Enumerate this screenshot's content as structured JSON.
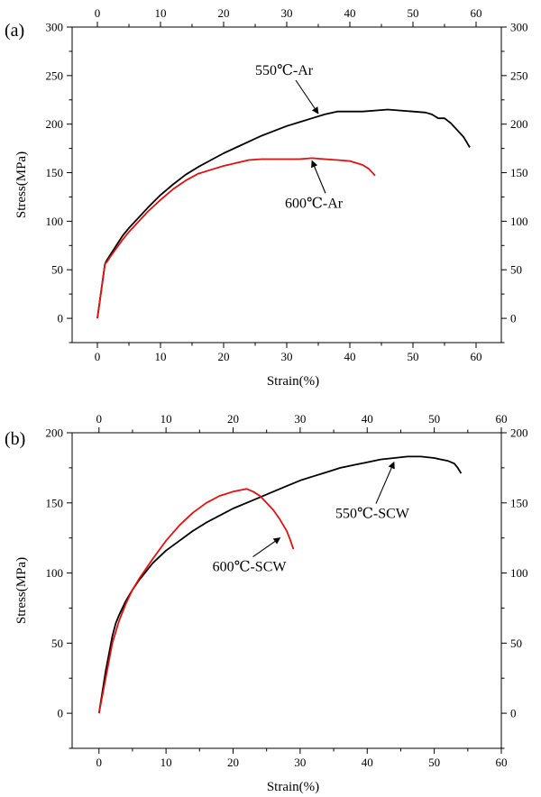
{
  "chart_data": [
    {
      "type": "line",
      "panel_label": "(a)",
      "xlabel": "Strain(%)",
      "ylabel": "Stress(MPa)",
      "xlim": [
        -4,
        64
      ],
      "ylim": [
        -25,
        300
      ],
      "xticks": [
        0,
        10,
        20,
        30,
        40,
        50,
        60
      ],
      "yticks": [
        0,
        50,
        100,
        150,
        200,
        250,
        300
      ],
      "series": [
        {
          "name": "550℃-Ar",
          "color": "#000000",
          "x": [
            0,
            1.2,
            1.5,
            2,
            3,
            4,
            5,
            6,
            8,
            10,
            12,
            14,
            16,
            18,
            20,
            22,
            24,
            26,
            28,
            30,
            32,
            34,
            36,
            38,
            40,
            42,
            44,
            46,
            48,
            50,
            52,
            53,
            54,
            55,
            56,
            57,
            58,
            59
          ],
          "y": [
            0,
            56,
            60,
            65,
            75,
            85,
            93,
            100,
            114,
            127,
            138,
            148,
            156,
            163,
            170,
            176,
            182,
            188,
            193,
            198,
            202,
            206,
            210,
            213,
            213,
            213,
            214,
            215,
            214,
            213,
            212,
            210,
            206,
            206,
            201,
            194,
            187,
            176
          ]
        },
        {
          "name": "600℃-Ar",
          "color": "#e01010",
          "x": [
            0,
            1.2,
            1.5,
            2,
            3,
            4,
            5,
            6,
            8,
            10,
            12,
            14,
            16,
            18,
            20,
            22,
            24,
            26,
            28,
            30,
            32,
            34,
            36,
            38,
            40,
            42,
            43,
            44
          ],
          "y": [
            0,
            56,
            58,
            63,
            72,
            81,
            89,
            96,
            110,
            122,
            133,
            142,
            149,
            153,
            157,
            160,
            163,
            164,
            164,
            164,
            164,
            165,
            164,
            163,
            162,
            158,
            154,
            147
          ]
        }
      ],
      "annotations": [
        {
          "text": "550℃-Ar",
          "series": "550℃-Ar",
          "arrow_to": [
            35,
            209
          ]
        },
        {
          "text": "600℃-Ar",
          "series": "600℃-Ar",
          "arrow_to": [
            34,
            165
          ]
        }
      ]
    },
    {
      "type": "line",
      "panel_label": "(b)",
      "xlabel": "Strain(%)",
      "ylabel": "Stress(MPa)",
      "xlim": [
        -4,
        60
      ],
      "ylim": [
        -25,
        200
      ],
      "xticks": [
        0,
        10,
        20,
        30,
        40,
        50,
        60
      ],
      "yticks": [
        0,
        50,
        100,
        150,
        200
      ],
      "series": [
        {
          "name": "550℃-SCW",
          "color": "#000000",
          "x": [
            0,
            1,
            2,
            2.5,
            3,
            4,
            5,
            6,
            8,
            10,
            12,
            14,
            16,
            18,
            20,
            22,
            24,
            26,
            28,
            30,
            32,
            34,
            36,
            38,
            40,
            42,
            44,
            46,
            48,
            50,
            51,
            52,
            53,
            53.5,
            54
          ],
          "y": [
            0,
            30,
            55,
            64,
            70,
            80,
            88,
            95,
            107,
            116,
            123,
            130,
            136,
            141,
            146,
            150,
            154,
            158,
            162,
            166,
            169,
            172,
            175,
            177,
            179,
            181,
            182,
            183,
            183,
            182,
            181,
            180,
            178,
            175,
            171
          ]
        },
        {
          "name": "600℃-SCW",
          "color": "#e01010",
          "x": [
            0,
            1,
            2,
            3,
            4,
            5,
            6,
            8,
            10,
            12,
            14,
            16,
            18,
            20,
            21,
            22,
            23,
            24,
            25,
            26,
            27,
            28,
            28.5,
            29
          ],
          "y": [
            0,
            25,
            50,
            66,
            78,
            88,
            96,
            110,
            123,
            134,
            143,
            150,
            155,
            158,
            159,
            160,
            158,
            155,
            150,
            145,
            138,
            130,
            124,
            117
          ]
        }
      ],
      "annotations": [
        {
          "text": "550℃-SCW",
          "series": "550℃-SCW",
          "arrow_to": [
            44,
            181
          ]
        },
        {
          "text": "600℃-SCW",
          "series": "600℃-SCW",
          "arrow_to": [
            27,
            127
          ]
        }
      ]
    }
  ]
}
